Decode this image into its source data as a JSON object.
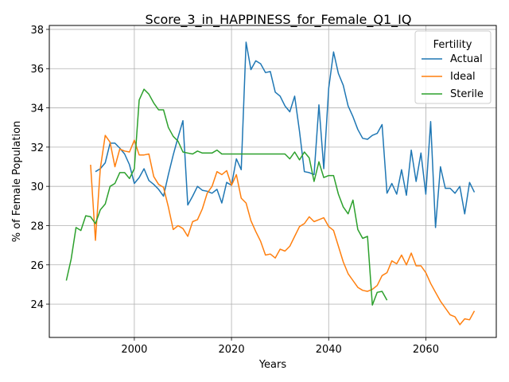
{
  "chart_data": {
    "type": "line",
    "title": "Score_3_in_HAPPINESS_for_Female_Q1_IQ",
    "xlabel": "Years",
    "ylabel": "% of Female Population",
    "xlim": [
      1982.5,
      2074.5
    ],
    "ylim": [
      22.3,
      38.2
    ],
    "xticks": [
      2000,
      2020,
      2040,
      2060
    ],
    "yticks": [
      24,
      26,
      28,
      30,
      32,
      34,
      36,
      38
    ],
    "grid": true,
    "legend": {
      "title": "Fertility",
      "placement": "upper right"
    },
    "series": [
      {
        "name": "Actual",
        "color": "#1f77b4",
        "x": [
          1992,
          1993,
          1994,
          1995,
          1996,
          1997,
          1998,
          1999,
          2000,
          2001,
          2002,
          2003,
          2004,
          2005,
          2006,
          2007,
          2008,
          2009,
          2010,
          2011,
          2012,
          2013,
          2014,
          2015,
          2016,
          2017,
          2018,
          2019,
          2020,
          2021,
          2022,
          2023,
          2024,
          2025,
          2026,
          2027,
          2028,
          2029,
          2030,
          2031,
          2032,
          2033,
          2034,
          2035,
          2036,
          2037,
          2038,
          2039,
          2040,
          2041,
          2042,
          2043,
          2044,
          2045,
          2046,
          2047,
          2048,
          2049,
          2050,
          2051,
          2052,
          2053,
          2054,
          2055,
          2056,
          2057,
          2058,
          2059,
          2060,
          2061,
          2062,
          2063,
          2064,
          2065,
          2066,
          2067,
          2068,
          2069,
          2070
        ],
        "values": [
          30.75,
          30.9,
          31.2,
          32.2,
          32.2,
          31.95,
          31.65,
          31.1,
          30.15,
          30.45,
          30.9,
          30.3,
          30.1,
          29.85,
          29.5,
          30.6,
          31.6,
          32.5,
          33.35,
          29.05,
          29.5,
          30.0,
          29.8,
          29.75,
          29.65,
          29.85,
          29.15,
          30.2,
          30.05,
          31.4,
          30.85,
          37.35,
          35.95,
          36.4,
          36.25,
          35.8,
          35.85,
          34.8,
          34.6,
          34.1,
          33.8,
          34.6,
          32.8,
          30.75,
          30.7,
          30.6,
          34.15,
          30.9,
          35.0,
          36.85,
          35.75,
          35.15,
          34.1,
          33.55,
          32.9,
          32.45,
          32.4,
          32.6,
          32.7,
          33.15,
          29.65,
          30.15,
          29.6,
          30.85,
          29.55,
          31.85,
          30.25,
          31.7,
          29.6,
          33.3,
          27.9,
          31.0,
          29.9,
          29.9,
          29.65,
          30.0,
          28.6,
          30.2,
          29.7
        ]
      },
      {
        "name": "Ideal",
        "color": "#ff7f0e",
        "x": [
          1991,
          1992,
          1993,
          1994,
          1995,
          1996,
          1997,
          1998,
          1999,
          2000,
          2001,
          2002,
          2003,
          2004,
          2005,
          2006,
          2007,
          2008,
          2009,
          2010,
          2011,
          2012,
          2013,
          2014,
          2015,
          2016,
          2017,
          2018,
          2019,
          2020,
          2021,
          2022,
          2023,
          2024,
          2025,
          2026,
          2027,
          2028,
          2029,
          2030,
          2031,
          2032,
          2033,
          2034,
          2035,
          2036,
          2037,
          2038,
          2039,
          2040,
          2041,
          2042,
          2043,
          2044,
          2045,
          2046,
          2047,
          2048,
          2049,
          2050,
          2051,
          2052,
          2053,
          2054,
          2055,
          2056,
          2057,
          2058,
          2059,
          2060,
          2061,
          2062,
          2063,
          2064,
          2065,
          2066,
          2067,
          2068,
          2069,
          2070
        ],
        "values": [
          31.1,
          27.25,
          30.9,
          32.6,
          32.25,
          31.0,
          31.9,
          31.8,
          31.75,
          32.35,
          31.6,
          31.6,
          31.65,
          30.5,
          30.1,
          29.95,
          28.95,
          27.8,
          28.0,
          27.85,
          27.45,
          28.2,
          28.3,
          28.85,
          29.65,
          30.0,
          30.75,
          30.6,
          30.8,
          30.05,
          30.6,
          29.4,
          29.15,
          28.25,
          27.7,
          27.2,
          26.5,
          26.55,
          26.35,
          26.8,
          26.7,
          26.95,
          27.45,
          27.95,
          28.1,
          28.45,
          28.2,
          28.3,
          28.4,
          27.95,
          27.75,
          26.95,
          26.15,
          25.55,
          25.2,
          24.85,
          24.7,
          24.65,
          24.75,
          24.95,
          25.45,
          25.6,
          26.2,
          26.05,
          26.5,
          26.0,
          26.6,
          25.95,
          25.95,
          25.6,
          25.05,
          24.6,
          24.15,
          23.8,
          23.45,
          23.35,
          22.95,
          23.25,
          23.2,
          23.65
        ]
      },
      {
        "name": "Sterile",
        "color": "#2ca02c",
        "x": [
          1986,
          1987,
          1988,
          1989,
          1990,
          1991,
          1992,
          1993,
          1994,
          1995,
          1996,
          1997,
          1998,
          1999,
          2000,
          2001,
          2002,
          2003,
          2004,
          2005,
          2006,
          2007,
          2008,
          2009,
          2010,
          2011,
          2012,
          2013,
          2014,
          2015,
          2016,
          2017,
          2018,
          2019,
          2020,
          2021,
          2022,
          2023,
          2024,
          2025,
          2026,
          2027,
          2028,
          2029,
          2030,
          2031,
          2032,
          2033,
          2034,
          2035,
          2036,
          2037,
          2038,
          2039,
          2040,
          2041,
          2042,
          2043,
          2044,
          2045,
          2046,
          2047,
          2048,
          2049,
          2050,
          2051,
          2052
        ],
        "values": [
          25.2,
          26.3,
          27.9,
          27.75,
          28.5,
          28.45,
          28.1,
          28.8,
          29.1,
          30.0,
          30.15,
          30.7,
          30.7,
          30.4,
          30.9,
          34.4,
          34.95,
          34.7,
          34.25,
          33.9,
          33.9,
          33.0,
          32.55,
          32.3,
          31.75,
          31.7,
          31.65,
          31.8,
          31.7,
          31.7,
          31.7,
          31.85,
          31.65,
          31.65,
          31.65,
          31.65,
          31.65,
          31.65,
          31.65,
          31.65,
          31.65,
          31.65,
          31.65,
          31.65,
          31.65,
          31.65,
          31.4,
          31.75,
          31.35,
          31.75,
          31.45,
          30.25,
          31.25,
          30.45,
          30.55,
          30.55,
          29.6,
          28.95,
          28.6,
          29.3,
          27.8,
          27.35,
          27.45,
          23.95,
          24.6,
          24.65,
          24.2
        ]
      }
    ]
  }
}
